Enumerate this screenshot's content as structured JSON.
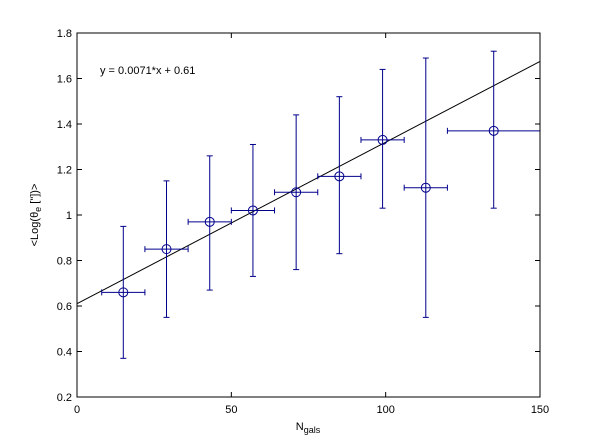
{
  "chart_data": {
    "type": "scatter",
    "xlabel_base": "N",
    "xlabel_sub": "gals",
    "ylabel_pre": "<Log(θ",
    "ylabel_sub": "e",
    "ylabel_post": " [\"])>",
    "xlim": [
      0,
      150
    ],
    "ylim": [
      0.2,
      1.8
    ],
    "xticks": [
      0,
      50,
      100,
      150
    ],
    "xtick_labels": [
      "0",
      "50",
      "100",
      "150"
    ],
    "yticks": [
      0.2,
      0.4,
      0.6,
      0.8,
      1.0,
      1.2,
      1.4,
      1.6,
      1.8
    ],
    "ytick_labels": [
      "0.2",
      "0.4",
      "0.6",
      "0.8",
      "1",
      "1.2",
      "1.4",
      "1.6",
      "1.8"
    ],
    "grid": false,
    "points": [
      {
        "x": 15,
        "y": 0.66,
        "xerr": 7,
        "y_low": 0.37,
        "y_high": 0.95
      },
      {
        "x": 29,
        "y": 0.85,
        "xerr": 7,
        "y_low": 0.55,
        "y_high": 1.15
      },
      {
        "x": 43,
        "y": 0.97,
        "xerr": 7,
        "y_low": 0.67,
        "y_high": 1.26
      },
      {
        "x": 57,
        "y": 1.02,
        "xerr": 7,
        "y_low": 0.73,
        "y_high": 1.31
      },
      {
        "x": 71,
        "y": 1.1,
        "xerr": 7,
        "y_low": 0.76,
        "y_high": 1.44
      },
      {
        "x": 85,
        "y": 1.17,
        "xerr": 7,
        "y_low": 0.83,
        "y_high": 1.52
      },
      {
        "x": 99,
        "y": 1.33,
        "xerr": 7,
        "y_low": 1.03,
        "y_high": 1.64
      },
      {
        "x": 113,
        "y": 1.12,
        "xerr": 7,
        "y_low": 0.55,
        "y_high": 1.69
      },
      {
        "x": 135,
        "y": 1.37,
        "xerr": 15,
        "y_low": 1.03,
        "y_high": 1.72
      }
    ],
    "fit": {
      "slope": 0.0071,
      "intercept": 0.61
    },
    "annotation": "y = 0.0071*x + 0.61",
    "colors": {
      "points": "#00008b",
      "fit": "#000000",
      "axes": "#000000"
    }
  }
}
